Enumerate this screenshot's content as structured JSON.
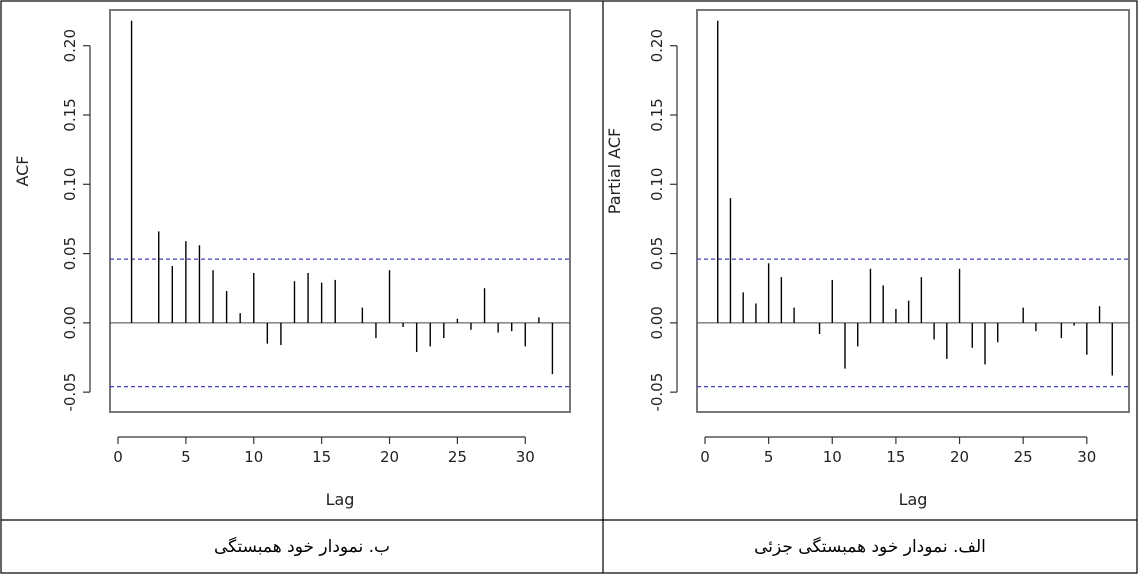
{
  "chart_data": [
    {
      "type": "bar",
      "caption": "ب. نمودار خود همبستگی",
      "xlabel": "Lag",
      "ylabel": "ACF",
      "xlim": [
        0,
        33
      ],
      "ylim": [
        -0.06,
        0.22
      ],
      "x_ticks": [
        0,
        5,
        10,
        15,
        20,
        25,
        30
      ],
      "y_ticks": [
        -0.05,
        0.0,
        0.05,
        0.1,
        0.15,
        0.2
      ],
      "confidence_bound": 0.046,
      "confidence_color": "#4040c0",
      "lags": [
        1,
        2,
        3,
        4,
        5,
        6,
        7,
        8,
        9,
        10,
        11,
        12,
        13,
        14,
        15,
        16,
        17,
        18,
        19,
        20,
        21,
        22,
        23,
        24,
        25,
        26,
        27,
        28,
        29,
        30,
        31,
        32
      ],
      "values": [
        0.218,
        0.0,
        0.066,
        0.041,
        0.059,
        0.056,
        0.038,
        0.023,
        0.007,
        0.036,
        -0.015,
        -0.016,
        0.03,
        0.036,
        0.029,
        0.031,
        0.0,
        0.011,
        -0.011,
        0.038,
        -0.003,
        -0.021,
        -0.017,
        -0.011,
        0.003,
        -0.005,
        0.025,
        -0.007,
        -0.006,
        -0.017,
        0.004,
        -0.037
      ]
    },
    {
      "type": "bar",
      "caption": "الف. نمودار خود همبستگی جزئی",
      "xlabel": "Lag",
      "ylabel": "Partial ACF",
      "xlim": [
        0,
        33
      ],
      "ylim": [
        -0.06,
        0.22
      ],
      "x_ticks": [
        0,
        5,
        10,
        15,
        20,
        25,
        30
      ],
      "y_ticks": [
        -0.05,
        0.0,
        0.05,
        0.1,
        0.15,
        0.2
      ],
      "confidence_bound": 0.046,
      "confidence_color": "#4040c0",
      "lags": [
        1,
        2,
        3,
        4,
        5,
        6,
        7,
        8,
        9,
        10,
        11,
        12,
        13,
        14,
        15,
        16,
        17,
        18,
        19,
        20,
        21,
        22,
        23,
        24,
        25,
        26,
        27,
        28,
        29,
        30,
        31,
        32
      ],
      "values": [
        0.218,
        0.09,
        0.022,
        0.014,
        0.043,
        0.033,
        0.011,
        0.0,
        -0.008,
        0.031,
        -0.033,
        -0.017,
        0.039,
        0.027,
        0.01,
        0.016,
        0.033,
        -0.012,
        -0.026,
        0.039,
        -0.018,
        -0.03,
        -0.014,
        0.0,
        0.011,
        -0.006,
        0.0,
        -0.011,
        -0.002,
        -0.023,
        0.012,
        -0.038
      ]
    }
  ]
}
